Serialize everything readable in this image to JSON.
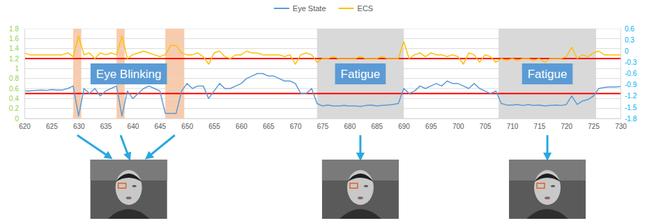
{
  "chart_data": {
    "type": "line",
    "x": [
      620,
      621,
      622,
      623,
      624,
      625,
      626,
      627,
      628,
      629,
      630,
      631,
      632,
      633,
      634,
      635,
      636,
      637,
      638,
      639,
      640,
      641,
      642,
      643,
      644,
      645,
      646,
      647,
      648,
      649,
      650,
      651,
      652,
      653,
      654,
      655,
      656,
      657,
      658,
      659,
      660,
      661,
      662,
      663,
      664,
      665,
      666,
      667,
      668,
      669,
      670,
      671,
      672,
      673,
      674,
      675,
      676,
      677,
      678,
      679,
      680,
      681,
      682,
      683,
      684,
      685,
      686,
      687,
      688,
      689,
      690,
      691,
      692,
      693,
      694,
      695,
      696,
      697,
      698,
      699,
      700,
      701,
      702,
      703,
      704,
      705,
      706,
      707,
      708,
      709,
      710,
      711,
      712,
      713,
      714,
      715,
      716,
      717,
      718,
      719,
      720,
      721,
      722,
      723,
      724,
      725,
      726,
      727,
      728,
      729,
      730
    ],
    "xlim": [
      620,
      730
    ],
    "xticks": [
      620,
      625,
      630,
      635,
      640,
      645,
      650,
      655,
      660,
      665,
      670,
      675,
      680,
      685,
      690,
      695,
      700,
      705,
      710,
      715,
      720,
      725,
      730
    ],
    "ylim": [
      0,
      1.8
    ],
    "yticks": [
      0,
      0.2,
      0.4,
      0.6,
      0.8,
      1,
      1.2,
      1.4,
      1.6,
      1.8
    ],
    "y2lim": [
      -1.8,
      0.6
    ],
    "y2ticks": [
      -1.8,
      -1.5,
      -1.2,
      -0.9,
      -0.6,
      -0.3,
      0,
      0.3,
      0.6
    ],
    "grid": true,
    "legend": "top",
    "series": [
      {
        "name": "Eye State",
        "color": "#5b9bd5",
        "values": [
          0.55,
          0.55,
          0.56,
          0.57,
          0.56,
          0.58,
          0.57,
          0.57,
          0.6,
          0.65,
          0.05,
          0.6,
          0.5,
          0.6,
          0.45,
          0.55,
          0.6,
          0.65,
          0.05,
          0.55,
          0.4,
          0.5,
          0.6,
          0.65,
          0.6,
          0.55,
          0.1,
          0.1,
          0.1,
          0.55,
          0.7,
          0.6,
          0.65,
          0.65,
          0.4,
          0.55,
          0.7,
          0.6,
          0.6,
          0.65,
          0.7,
          0.8,
          0.85,
          0.9,
          0.9,
          0.85,
          0.85,
          0.8,
          0.75,
          0.75,
          0.7,
          0.5,
          0.5,
          0.6,
          0.3,
          0.25,
          0.27,
          0.25,
          0.25,
          0.26,
          0.25,
          0.25,
          0.24,
          0.26,
          0.27,
          0.25,
          0.26,
          0.27,
          0.28,
          0.3,
          0.6,
          0.5,
          0.55,
          0.65,
          0.6,
          0.65,
          0.7,
          0.65,
          0.75,
          0.7,
          0.7,
          0.65,
          0.6,
          0.7,
          0.6,
          0.55,
          0.5,
          0.55,
          0.3,
          0.27,
          0.27,
          0.28,
          0.26,
          0.28,
          0.26,
          0.27,
          0.25,
          0.26,
          0.27,
          0.26,
          0.28,
          0.45,
          0.28,
          0.35,
          0.38,
          0.45,
          0.6,
          0.62,
          0.63,
          0.63,
          0.64
        ]
      },
      {
        "name": "ECS",
        "color": "#ffc000",
        "axis": "y2",
        "values": [
          -0.05,
          -0.1,
          -0.1,
          -0.1,
          -0.1,
          -0.1,
          -0.1,
          -0.1,
          -0.05,
          -0.15,
          0.4,
          -0.1,
          -0.05,
          -0.2,
          -0.05,
          -0.1,
          -0.05,
          -0.1,
          0.4,
          -0.2,
          -0.1,
          -0.05,
          0,
          -0.05,
          -0.1,
          -0.15,
          -0.1,
          0.15,
          0.15,
          -0.05,
          -0.1,
          -0.1,
          -0.05,
          -0.15,
          -0.35,
          -0.05,
          0,
          -0.15,
          -0.2,
          -0.1,
          -0.1,
          0,
          -0.05,
          -0.05,
          -0.1,
          -0.1,
          -0.1,
          -0.1,
          -0.15,
          -0.1,
          -0.35,
          -0.1,
          -0.05,
          -0.1,
          -0.3,
          -0.2,
          -0.2,
          -0.15,
          -0.2,
          -0.2,
          -0.2,
          -0.2,
          -0.15,
          -0.2,
          -0.2,
          -0.2,
          -0.15,
          -0.2,
          -0.2,
          -0.2,
          0.25,
          -0.2,
          -0.1,
          -0.05,
          -0.15,
          -0.05,
          -0.1,
          -0.1,
          -0.15,
          -0.1,
          -0.15,
          -0.35,
          -0.05,
          -0.1,
          -0.3,
          -0.1,
          -0.15,
          -0.3,
          -0.2,
          -0.25,
          -0.2,
          -0.25,
          -0.2,
          -0.2,
          -0.25,
          -0.2,
          -0.3,
          -0.2,
          -0.2,
          -0.2,
          -0.15,
          0.1,
          -0.2,
          -0.1,
          -0.15,
          -0.05,
          0,
          -0.1,
          -0.1,
          -0.1,
          -0.1
        ]
      }
    ],
    "reference_lines": [
      {
        "value": 0.5,
        "color": "#ff0000"
      },
      {
        "value": -0.2,
        "axis": "y2",
        "color": "#ff0000"
      }
    ],
    "annotations": [
      {
        "text": "Eye Blinking",
        "color": "#f8cbad",
        "bands": [
          [
            629,
            630.5
          ],
          [
            637,
            638.5
          ],
          [
            646,
            649.5
          ]
        ]
      },
      {
        "text": "Fatigue",
        "color": "#d9d9d9",
        "bands": [
          [
            674,
            690
          ]
        ]
      },
      {
        "text": "Fatigue",
        "color": "#d9d9d9",
        "bands": [
          [
            707.5,
            725.5
          ]
        ]
      }
    ]
  }
}
